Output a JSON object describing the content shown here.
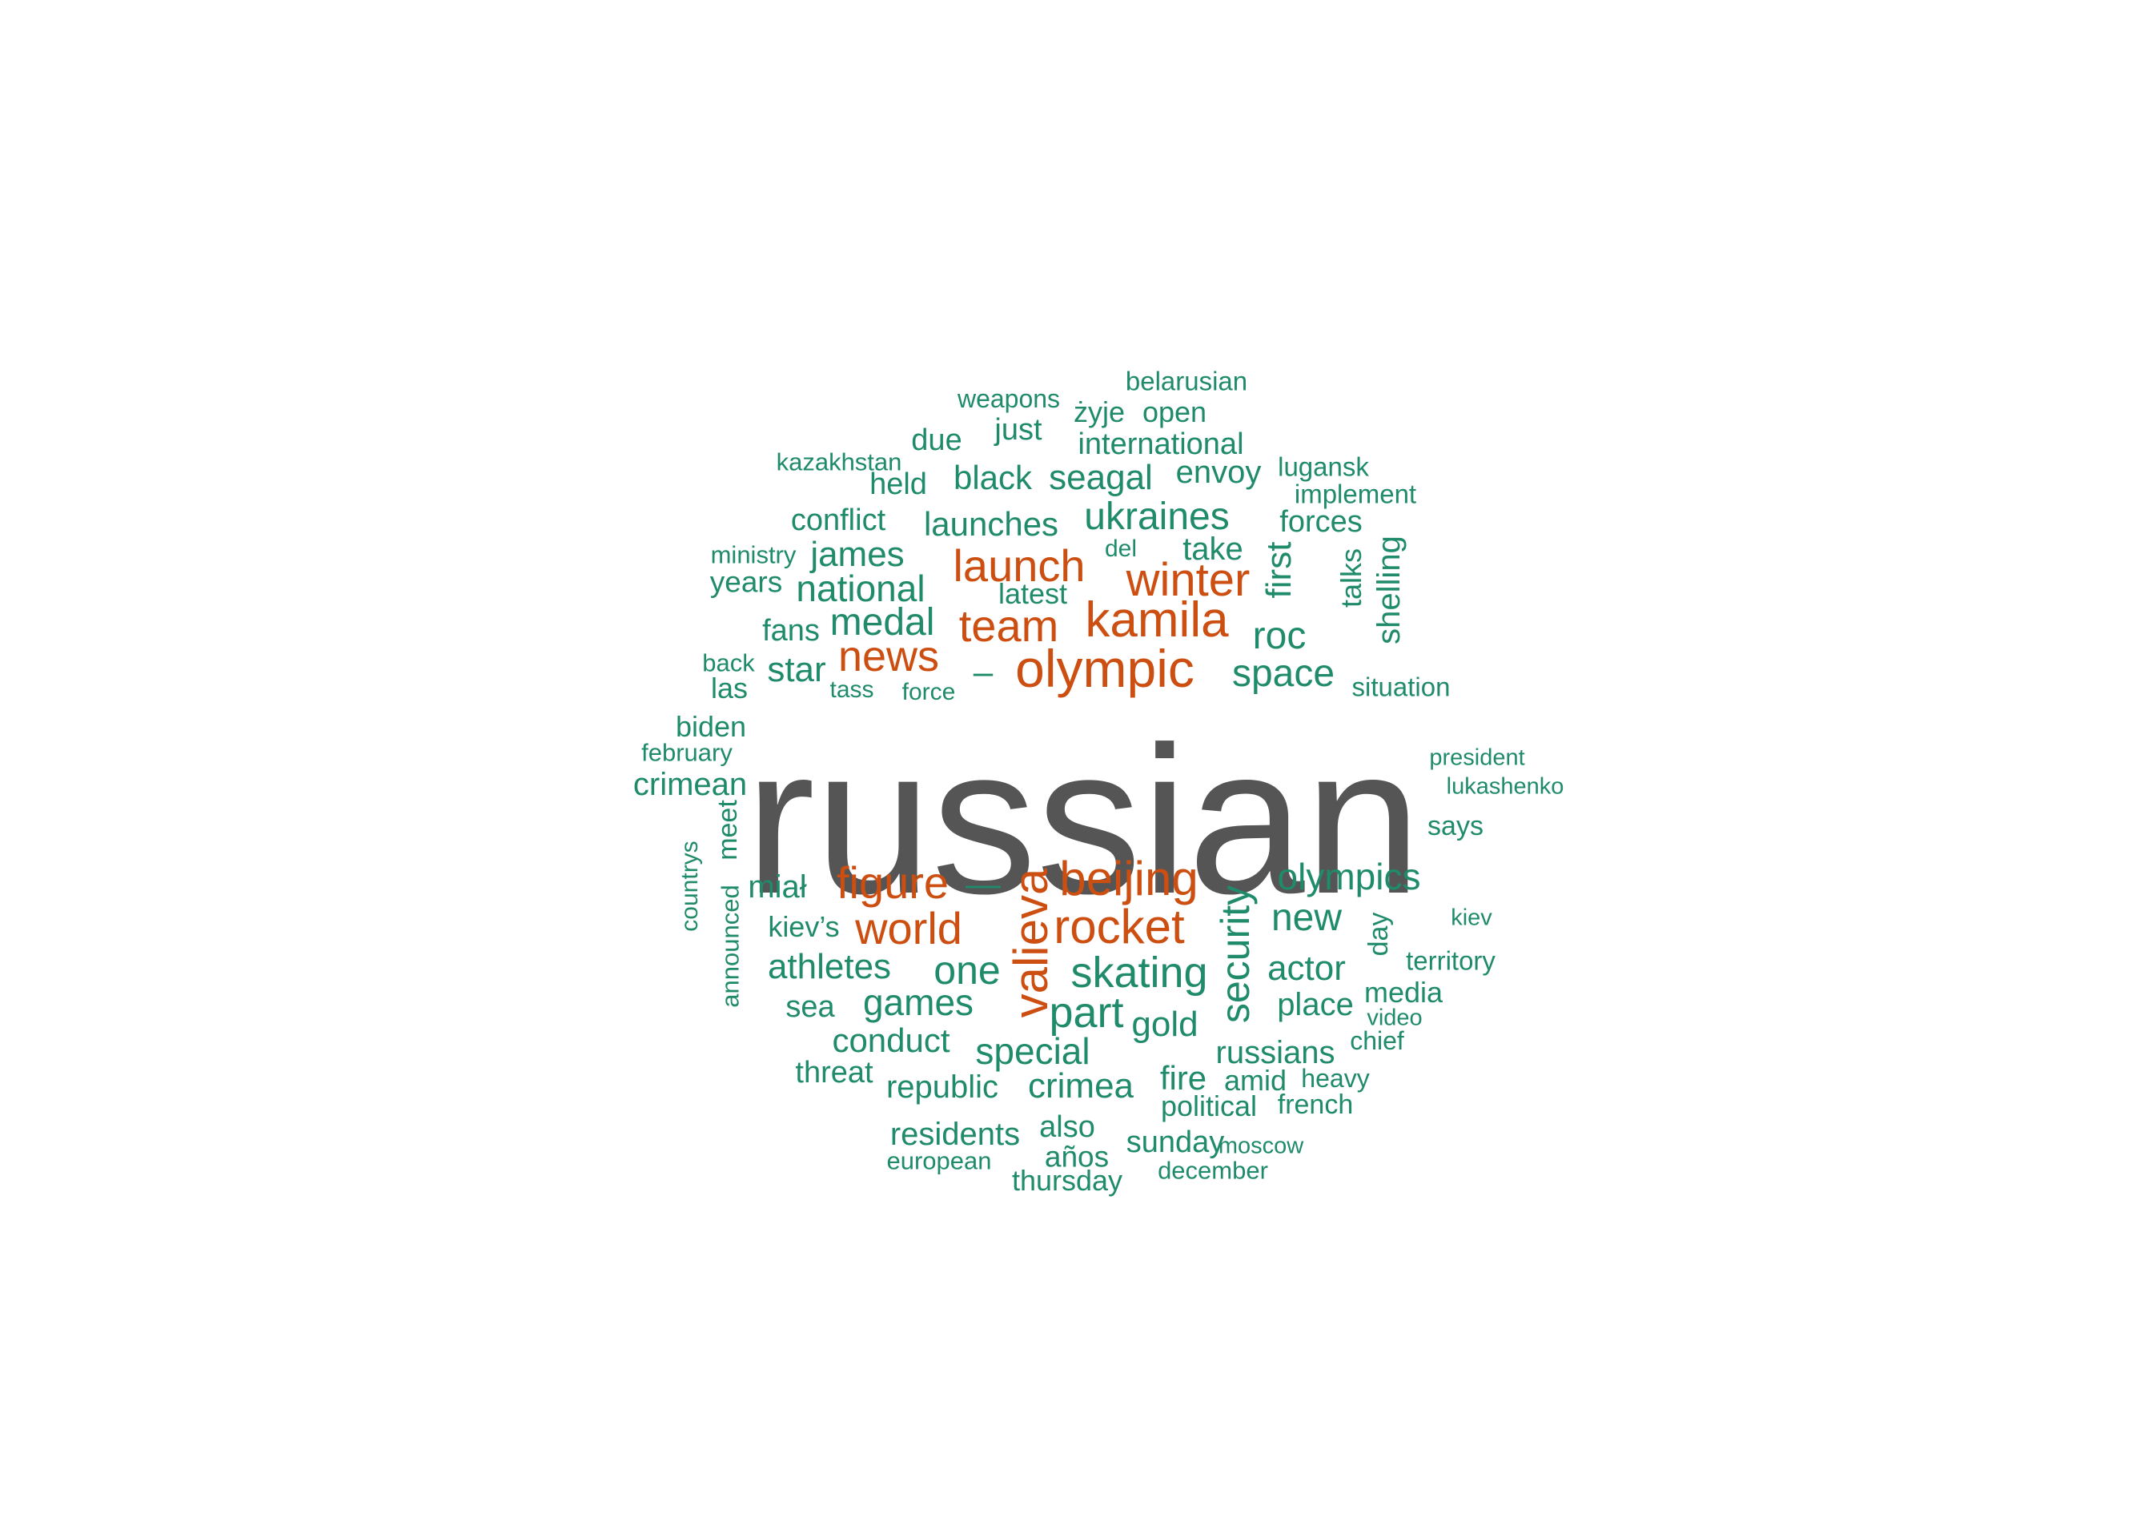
{
  "colors": {
    "top": "#555555",
    "high": "#cc4e10",
    "low": "#1f8b6b"
  },
  "words": [
    {
      "text": "russian",
      "tier": "top"
    },
    {
      "text": "olympic",
      "tier": "high"
    },
    {
      "text": "kamila",
      "tier": "high"
    },
    {
      "text": "winter",
      "tier": "high"
    },
    {
      "text": "launch",
      "tier": "high"
    },
    {
      "text": "team",
      "tier": "high"
    },
    {
      "text": "news",
      "tier": "high"
    },
    {
      "text": "beijing",
      "tier": "high"
    },
    {
      "text": "figure",
      "tier": "high"
    },
    {
      "text": "rocket",
      "tier": "high"
    },
    {
      "text": "world",
      "tier": "high"
    },
    {
      "text": "valieva",
      "tier": "high"
    },
    {
      "text": "–",
      "tier": "low"
    },
    {
      "text": "—",
      "tier": "low"
    },
    {
      "text": "ukraines",
      "tier": "low"
    },
    {
      "text": "launches",
      "tier": "low"
    },
    {
      "text": "seagal",
      "tier": "low"
    },
    {
      "text": "black",
      "tier": "low"
    },
    {
      "text": "international",
      "tier": "low"
    },
    {
      "text": "envoy",
      "tier": "low"
    },
    {
      "text": "open",
      "tier": "low"
    },
    {
      "text": "żyje",
      "tier": "low"
    },
    {
      "text": "belarusian",
      "tier": "low"
    },
    {
      "text": "weapons",
      "tier": "low"
    },
    {
      "text": "just",
      "tier": "low"
    },
    {
      "text": "due",
      "tier": "low"
    },
    {
      "text": "kazakhstan",
      "tier": "low"
    },
    {
      "text": "held",
      "tier": "low"
    },
    {
      "text": "lugansk",
      "tier": "low"
    },
    {
      "text": "implement",
      "tier": "low"
    },
    {
      "text": "forces",
      "tier": "low"
    },
    {
      "text": "conflict",
      "tier": "low"
    },
    {
      "text": "take",
      "tier": "low"
    },
    {
      "text": "del",
      "tier": "low"
    },
    {
      "text": "ministry",
      "tier": "low"
    },
    {
      "text": "james",
      "tier": "low"
    },
    {
      "text": "years",
      "tier": "low"
    },
    {
      "text": "national",
      "tier": "low"
    },
    {
      "text": "latest",
      "tier": "low"
    },
    {
      "text": "first",
      "tier": "low"
    },
    {
      "text": "talks",
      "tier": "low"
    },
    {
      "text": "shelling",
      "tier": "low"
    },
    {
      "text": "medal",
      "tier": "low"
    },
    {
      "text": "fans",
      "tier": "low"
    },
    {
      "text": "roc",
      "tier": "low"
    },
    {
      "text": "back",
      "tier": "low"
    },
    {
      "text": "star",
      "tier": "low"
    },
    {
      "text": "las",
      "tier": "low"
    },
    {
      "text": "tass",
      "tier": "low"
    },
    {
      "text": "force",
      "tier": "low"
    },
    {
      "text": "space",
      "tier": "low"
    },
    {
      "text": "situation",
      "tier": "low"
    },
    {
      "text": "biden",
      "tier": "low"
    },
    {
      "text": "february",
      "tier": "low"
    },
    {
      "text": "crimean",
      "tier": "low"
    },
    {
      "text": "president",
      "tier": "low"
    },
    {
      "text": "lukashenko",
      "tier": "low"
    },
    {
      "text": "says",
      "tier": "low"
    },
    {
      "text": "meet",
      "tier": "low"
    },
    {
      "text": "countrys",
      "tier": "low"
    },
    {
      "text": "announced",
      "tier": "low"
    },
    {
      "text": "miał",
      "tier": "low"
    },
    {
      "text": "kiev’s",
      "tier": "low"
    },
    {
      "text": "olympics",
      "tier": "low"
    },
    {
      "text": "security",
      "tier": "low"
    },
    {
      "text": "new",
      "tier": "low"
    },
    {
      "text": "day",
      "tier": "low"
    },
    {
      "text": "kiev",
      "tier": "low"
    },
    {
      "text": "territory",
      "tier": "low"
    },
    {
      "text": "actor",
      "tier": "low"
    },
    {
      "text": "skating",
      "tier": "low"
    },
    {
      "text": "one",
      "tier": "low"
    },
    {
      "text": "athletes",
      "tier": "low"
    },
    {
      "text": "games",
      "tier": "low"
    },
    {
      "text": "sea",
      "tier": "low"
    },
    {
      "text": "part",
      "tier": "low"
    },
    {
      "text": "gold",
      "tier": "low"
    },
    {
      "text": "place",
      "tier": "low"
    },
    {
      "text": "media",
      "tier": "low"
    },
    {
      "text": "video",
      "tier": "low"
    },
    {
      "text": "chief",
      "tier": "low"
    },
    {
      "text": "conduct",
      "tier": "low"
    },
    {
      "text": "special",
      "tier": "low"
    },
    {
      "text": "russians",
      "tier": "low"
    },
    {
      "text": "threat",
      "tier": "low"
    },
    {
      "text": "republic",
      "tier": "low"
    },
    {
      "text": "crimea",
      "tier": "low"
    },
    {
      "text": "fire",
      "tier": "low"
    },
    {
      "text": "amid",
      "tier": "low"
    },
    {
      "text": "heavy",
      "tier": "low"
    },
    {
      "text": "political",
      "tier": "low"
    },
    {
      "text": "french",
      "tier": "low"
    },
    {
      "text": "residents",
      "tier": "low"
    },
    {
      "text": "also",
      "tier": "low"
    },
    {
      "text": "sunday",
      "tier": "low"
    },
    {
      "text": "moscow",
      "tier": "low"
    },
    {
      "text": "european",
      "tier": "low"
    },
    {
      "text": "años",
      "tier": "low"
    },
    {
      "text": "december",
      "tier": "low"
    },
    {
      "text": "thursday",
      "tier": "low"
    }
  ]
}
